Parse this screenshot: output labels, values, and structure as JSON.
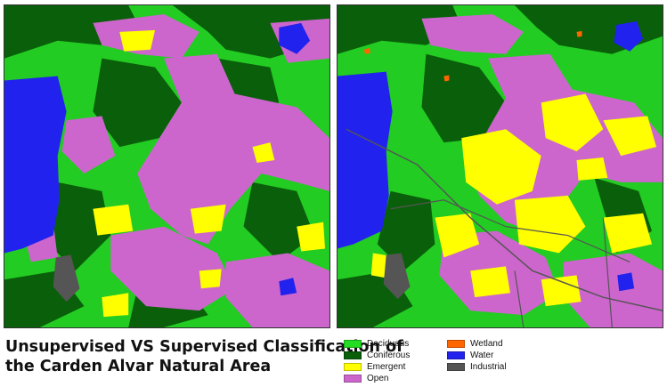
{
  "caption": {
    "line1": "Unsupervised VS Supervised Classification of",
    "line2": "the Carden Alvar Natural Area"
  },
  "legend": {
    "items": [
      {
        "label": "Deciduous",
        "color": "#22dd22"
      },
      {
        "label": "Coniferous",
        "color": "#0a5f0a"
      },
      {
        "label": "Emergent",
        "color": "#ffff00"
      },
      {
        "label": "Open",
        "color": "#cc66cc"
      },
      {
        "label": "Wetland",
        "color": "#ff6600"
      },
      {
        "label": "Water",
        "color": "#2222ee"
      },
      {
        "label": "Industrial",
        "color": "#555555"
      }
    ]
  },
  "maps": [
    {
      "id": "unsupervised"
    },
    {
      "id": "supervised"
    }
  ]
}
